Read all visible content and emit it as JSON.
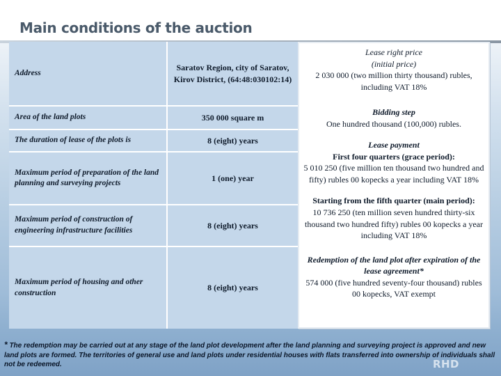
{
  "title": "Main conditions of the auction",
  "rows": [
    {
      "label": "Address",
      "value": "Saratov Region, city of Saratov, Kirov District, (64:48:030102:14)"
    },
    {
      "label": "Area of the land plots",
      "value": "350 000 square m"
    },
    {
      "label": "The duration of lease of the plots is",
      "value": "8 (eight) years"
    },
    {
      "label": "Maximum period of preparation of the land planning and surveying projects",
      "value": "1 (one) year"
    },
    {
      "label": "Maximum period of construction of engineering infrastructure facilities",
      "value": "8 (eight) years"
    },
    {
      "label": "Maximum period of housing and other construction",
      "value": "8 (eight) years"
    }
  ],
  "side": {
    "lease_heading": "Lease right price",
    "lease_sub": "(initial price)",
    "lease_text": "2 030 000 (two million thirty thousand) rubles, including VAT 18%",
    "bidding_heading": "Bidding step",
    "bidding_text": "One hundred thousand (100,000) rubles.",
    "payment_heading": "Lease payment",
    "payment_first_heading": "First four quarters (grace period):",
    "payment_first_text": "5 010 250  (five million ten thousand two hundred and fifty) rubles 00 kopecks a year including VAT 18%",
    "payment_second_heading": "Starting from the fifth quarter (main period):",
    "payment_second_text": "10 736 250  (ten million seven hundred thirty-six thousand two hundred fifty) rubles 00 kopecks a year including VAT 18%",
    "redemption_heading": "Redemption of the land plot after expiration of the lease agreement*",
    "redemption_text": "574 000 (five hundred seventy-four thousand) rubles 00 kopecks, VAT exempt"
  },
  "footnote": {
    "star": "*",
    "text": " The redemption may be carried out at any stage of the land plot development after the land planning and surveying project is approved and new land plots are formed. The territories of general use and land plots under residential houses with flats transferred into ownership of individuals shall not be redeemed."
  },
  "logo": "RHD"
}
